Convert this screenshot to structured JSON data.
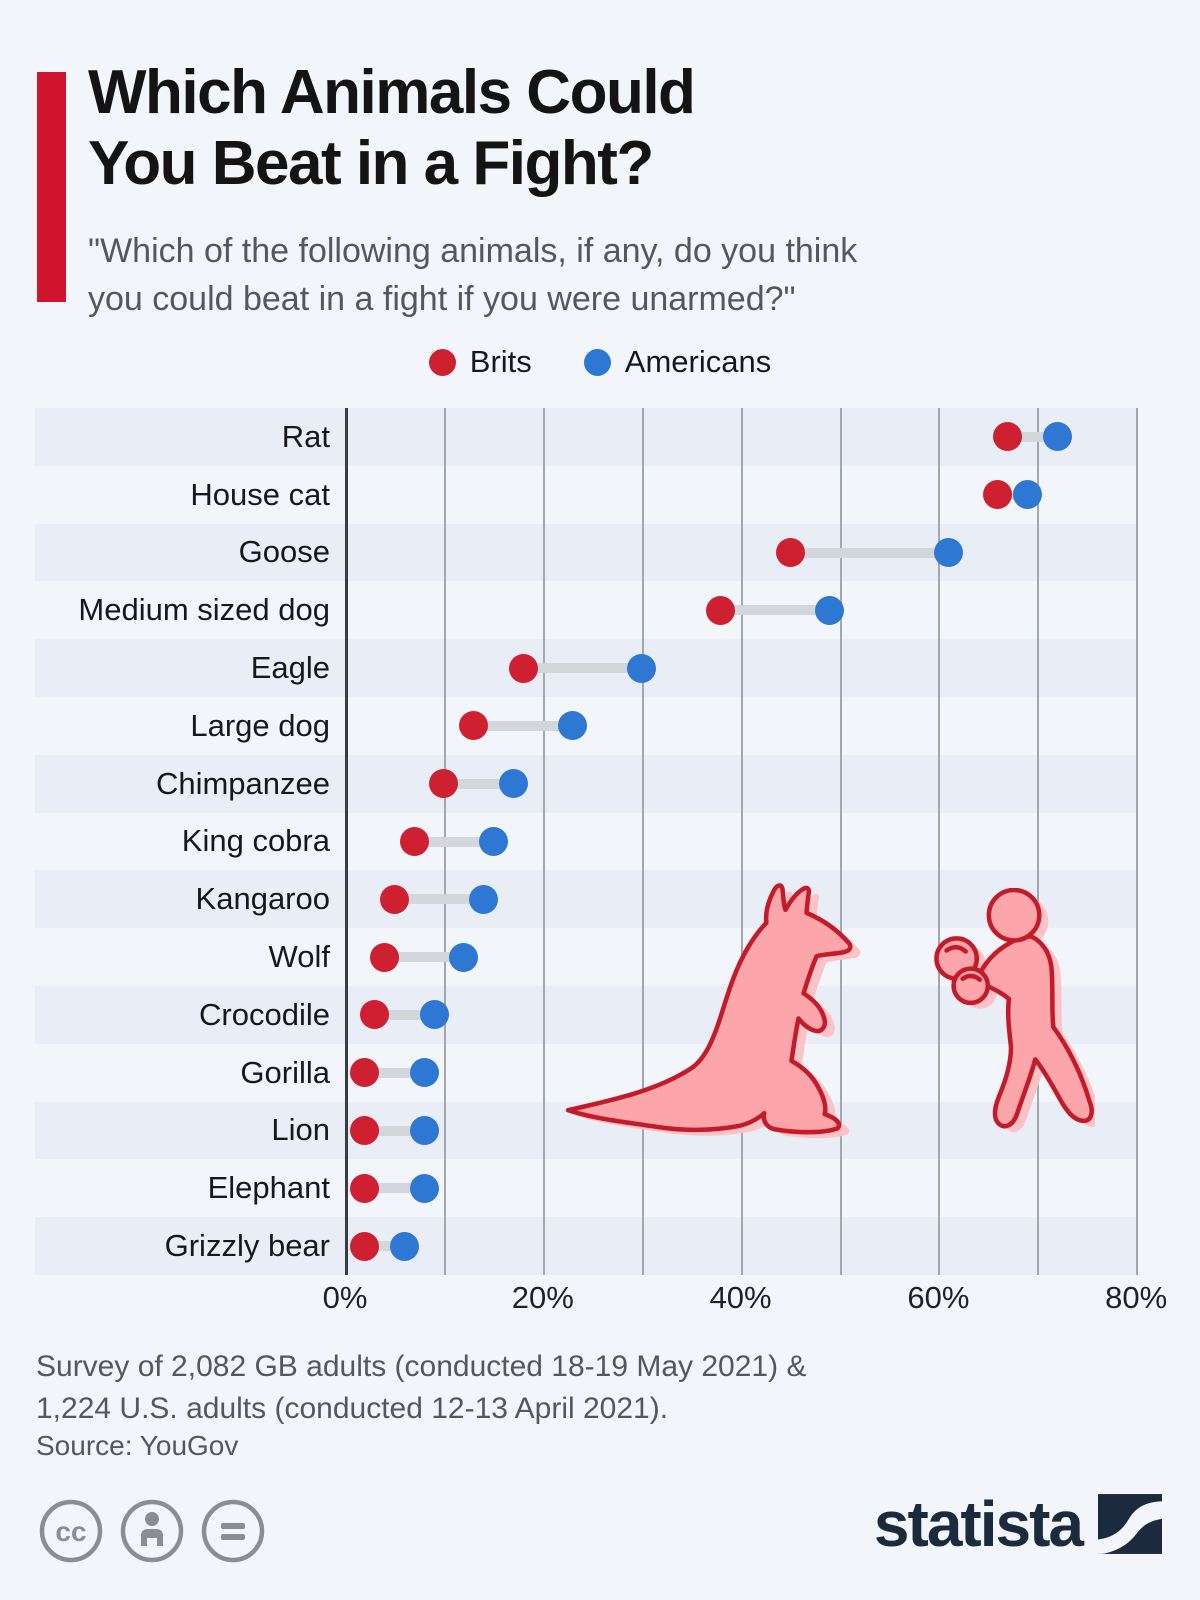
{
  "page": {
    "bg_color": "#f2f5f9"
  },
  "header": {
    "title_line1": "Which Animals Could",
    "title_line2": "You Beat in a Fight?",
    "subtitle_line1": "\"Which of the following animals, if any, do you think",
    "subtitle_line2": "you could beat in a fight if you were unarmed?\""
  },
  "legend": {
    "items": [
      {
        "label": "Brits",
        "color": "#cf2031"
      },
      {
        "label": "Americans",
        "color": "#2e78d3"
      }
    ]
  },
  "chart_data": {
    "type": "scatter",
    "subtype": "dumbbell",
    "orientation": "horizontal",
    "title": "Which Animals Could You Beat in a Fight?",
    "categories": [
      "Rat",
      "House cat",
      "Goose",
      "Medium sized dog",
      "Eagle",
      "Large dog",
      "Chimpanzee",
      "King cobra",
      "Kangaroo",
      "Wolf",
      "Crocodile",
      "Gorilla",
      "Lion",
      "Elephant",
      "Grizzly bear"
    ],
    "series": [
      {
        "name": "Brits",
        "color": "#cf2031",
        "values": [
          67,
          66,
          45,
          38,
          18,
          13,
          10,
          7,
          5,
          4,
          3,
          2,
          2,
          2,
          2
        ]
      },
      {
        "name": "Americans",
        "color": "#2e78d3",
        "values": [
          72,
          69,
          61,
          49,
          30,
          23,
          17,
          15,
          14,
          12,
          9,
          8,
          8,
          8,
          6
        ]
      }
    ],
    "unit": "%",
    "xlim": [
      0,
      80
    ],
    "xticks": [
      0,
      20,
      40,
      60,
      80
    ],
    "xtick_labels": [
      "0%",
      "20%",
      "40%",
      "60%",
      "80%"
    ],
    "gridline_step": 10,
    "grid": true,
    "legend_position": "top"
  },
  "footer": {
    "note_line1": "Survey of 2,082 GB adults (conducted 18-19 May 2021) &",
    "note_line2": "1,224 U.S. adults (conducted 12-13 April 2021).",
    "source": "Source: YouGov"
  },
  "branding": {
    "logo_text": "statista"
  },
  "colors": {
    "accent_red": "#d2152e",
    "brits_red": "#cf2031",
    "americans_blue": "#2e78d3",
    "row_band": "#e9edf5",
    "background": "#f2f5f9",
    "connector": "#d3d6da",
    "gridline": "#a2a7ad",
    "axis_line": "#393c40",
    "navy": "#1b2b3d",
    "text_dark": "#141414",
    "text_gray": "#55575b",
    "illustration_pink": "#fca6ac",
    "illustration_shadow": "#fcc3c7",
    "illustration_outline": "#c41b2b",
    "icon_gray": "#8a8d91"
  },
  "icons": [
    "cc-icon",
    "attribution-person-icon",
    "equals-icon",
    "statista-logo-mark",
    "kangaroo-illustration",
    "boxer-illustration"
  ]
}
